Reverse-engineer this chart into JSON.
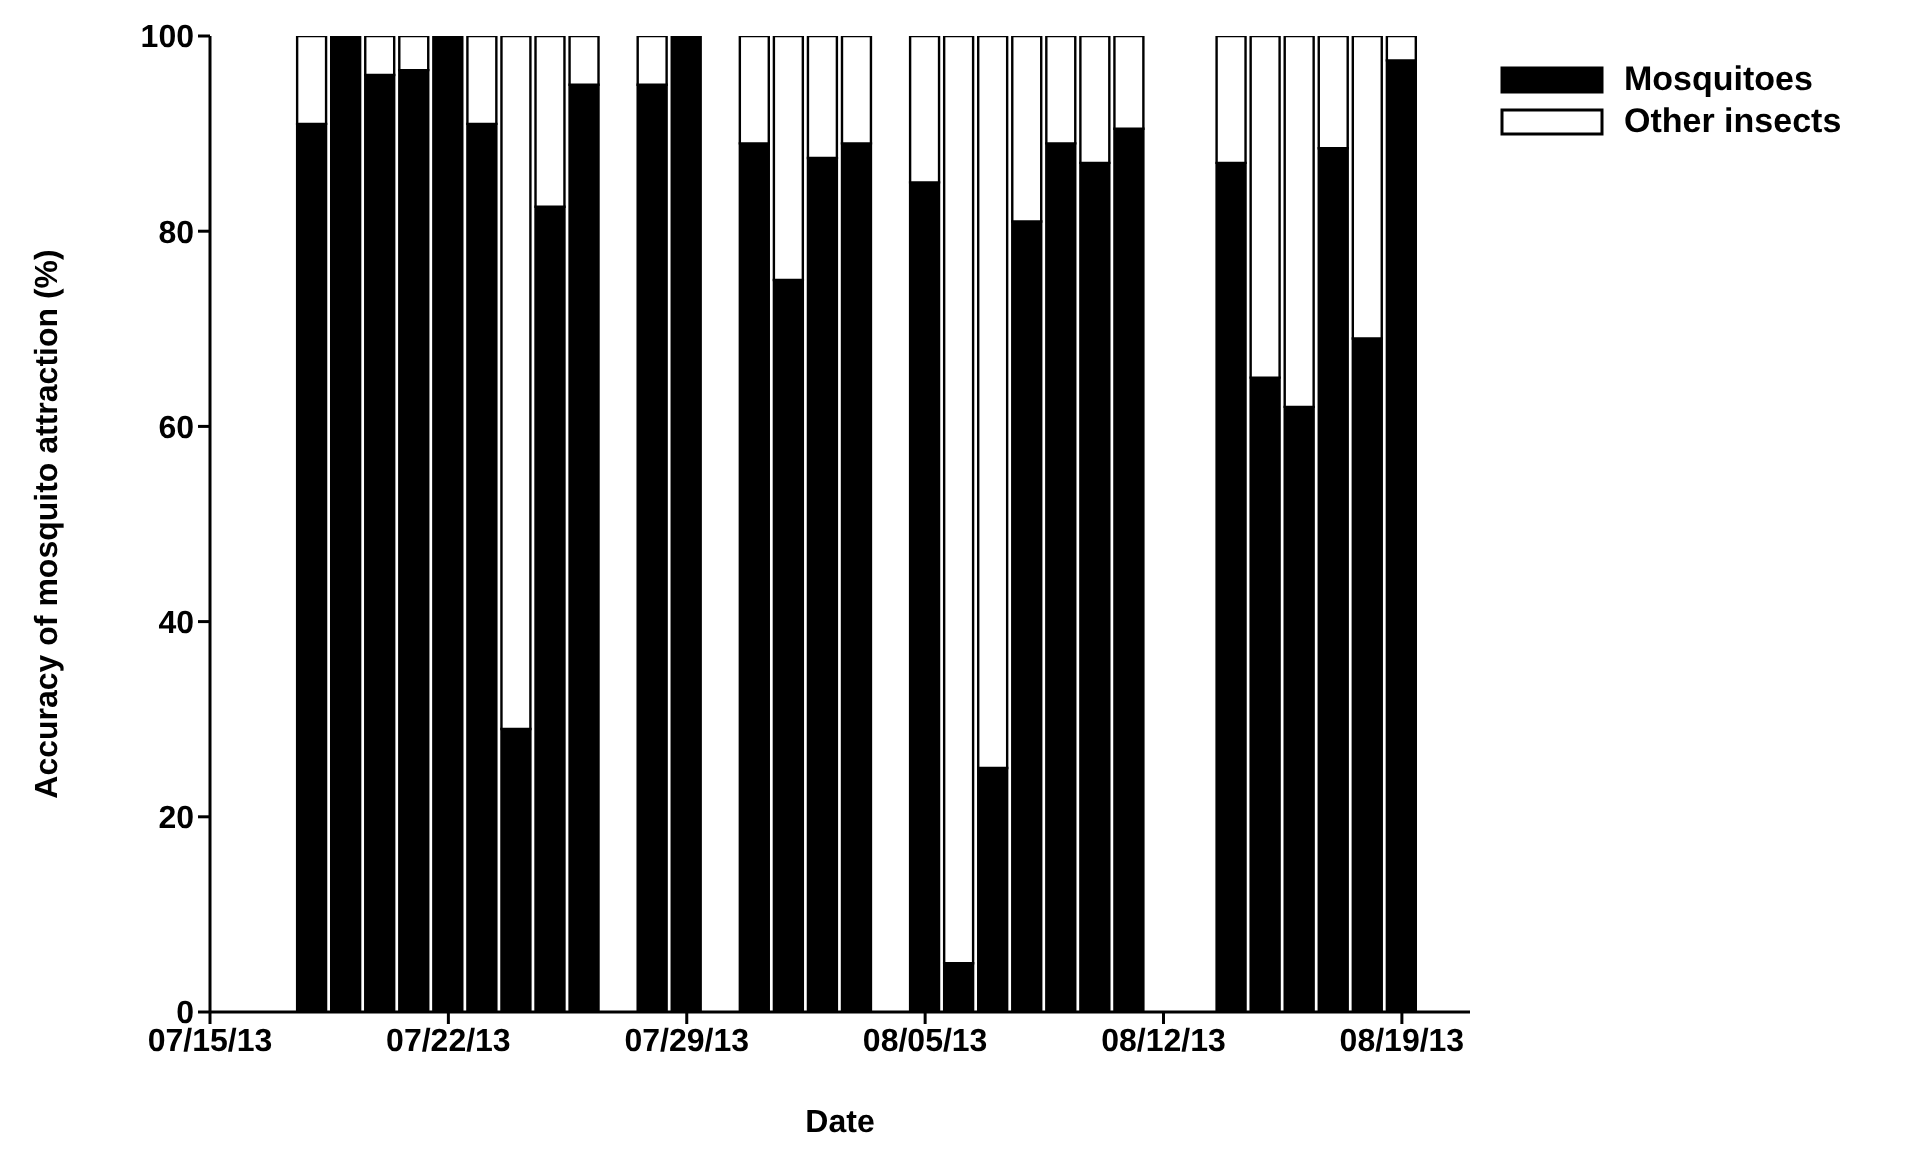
{
  "chart_data": {
    "type": "bar",
    "stacked": true,
    "xlabel": "Date",
    "ylabel": "Accuracy of mosquito attraction (%)",
    "x": [
      "--07-18",
      "--07-19",
      "--07-20",
      "--07-21",
      "--07-22",
      "--07-23",
      "--07-24",
      "--07-25",
      "--07-26",
      "--07-28",
      "--07-29",
      "--07-31",
      "--08-01",
      "--08-02",
      "--08-03",
      "--08-05",
      "--08-06",
      "--08-07",
      "--08-08",
      "--08-09",
      "--08-10",
      "--08-11",
      "--08-14",
      "--08-15",
      "--08-16",
      "--08-17",
      "--08-18",
      "--08-19"
    ],
    "series": [
      {
        "name": "Mosquitoes",
        "color": "#000000",
        "values": [
          91,
          100,
          96,
          96.5,
          100,
          91,
          29,
          82.5,
          95,
          95,
          100,
          89,
          75,
          87.5,
          89,
          85,
          5,
          25,
          81,
          89,
          87,
          90.5,
          87,
          65,
          62,
          88.5,
          69,
          97.5
        ]
      },
      {
        "name": "Other insects",
        "color": "#ffffff",
        "values": [
          9,
          0,
          4,
          3.5,
          0,
          9,
          71,
          17.5,
          5,
          5,
          0,
          11,
          25,
          12.5,
          11,
          15,
          95,
          75,
          19,
          11,
          13,
          9.5,
          13,
          35,
          38,
          11.5,
          31,
          2.5
        ]
      }
    ],
    "xlim": [
      "--07-15",
      "--08-21"
    ],
    "xticks": [
      {
        "value": "--07-15",
        "label": "07/15/13"
      },
      {
        "value": "--07-22",
        "label": "07/22/13"
      },
      {
        "value": "--07-29",
        "label": "07/29/13"
      },
      {
        "value": "--08-05",
        "label": "08/05/13"
      },
      {
        "value": "--08-12",
        "label": "08/12/13"
      },
      {
        "value": "--08-19",
        "label": "08/19/13"
      }
    ],
    "ylim": [
      0,
      100
    ],
    "yticks": [
      0,
      20,
      40,
      60,
      80,
      100
    ],
    "grid": false,
    "legend": "top right"
  }
}
